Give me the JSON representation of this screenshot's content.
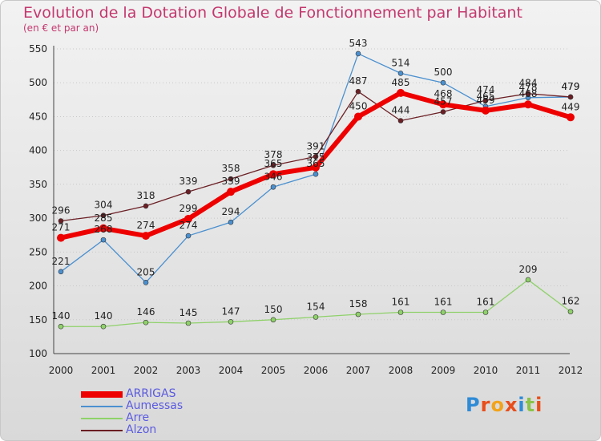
{
  "title": "Evolution de la Dotation Globale de Fonctionnement par Habitant",
  "subtitle": "(en € et par an)",
  "logo": {
    "text": "Proxiti",
    "colors": [
      "#2e8bd6",
      "#e84e1b",
      "#f2a31b",
      "#e84e1b",
      "#2e8bd6",
      "#8bc34a",
      "#e84e1b"
    ]
  },
  "chart_data": {
    "type": "line",
    "title": "Evolution de la Dotation Globale de Fonctionnement par Habitant",
    "ylabel": "(en € et par an)",
    "x": [
      "2000",
      "2001",
      "2002",
      "2003",
      "2004",
      "2005",
      "2006",
      "2007",
      "2008",
      "2009",
      "2010",
      "2011",
      "2012"
    ],
    "ylim": [
      100,
      550
    ],
    "yticks": [
      100,
      150,
      200,
      250,
      300,
      350,
      400,
      450,
      500,
      550
    ],
    "legend_position": "bottom-left",
    "series": [
      {
        "name": "ARRIGAS",
        "color": "#ee0000",
        "values": [
          271,
          285,
          274,
          299,
          339,
          365,
          375,
          450,
          485,
          468,
          459,
          468,
          449
        ]
      },
      {
        "name": "Aumessas",
        "color": "#4a90d0",
        "values": [
          221,
          268,
          205,
          274,
          294,
          346,
          365,
          543,
          514,
          500,
          465,
          478,
          479
        ]
      },
      {
        "name": "Arre",
        "color": "#8fd16a",
        "values": [
          140,
          140,
          146,
          145,
          147,
          150,
          154,
          158,
          161,
          161,
          161,
          209,
          162
        ]
      },
      {
        "name": "Alzon",
        "color": "#6b1f24",
        "values": [
          296,
          304,
          318,
          339,
          358,
          378,
          391,
          487,
          444,
          457,
          474,
          484,
          479
        ]
      }
    ]
  }
}
